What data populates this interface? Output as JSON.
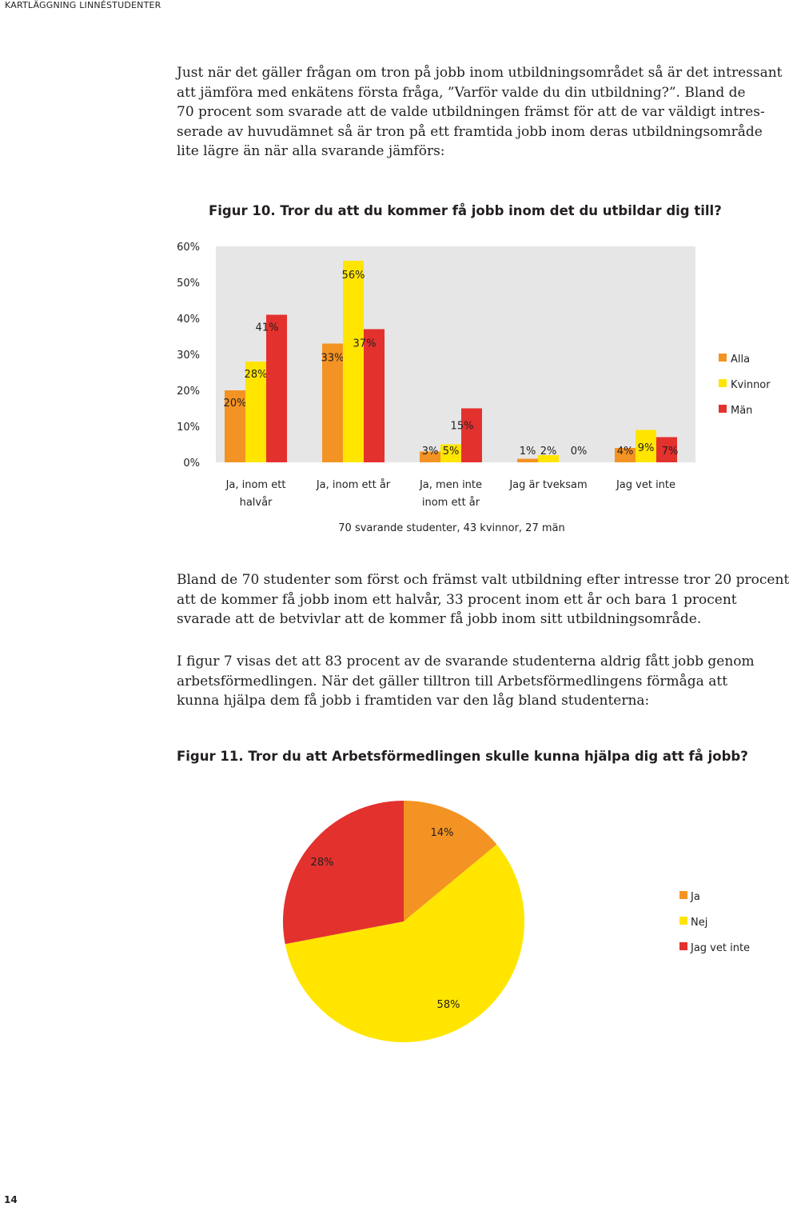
{
  "running_head": "KARTLÄGGNING LINNÉSTUDENTER",
  "paragraph_1": [
    "Just när det gäller frågan om tron på jobb inom utbildningsområdet så är det intressant",
    "att jämföra med enkätens första fråga, ”Varför valde du din utbildning?”. Bland de",
    "70 procent som svarade att de valde utbildningen främst för att de var väldigt intres-",
    "serade av huvudämnet så är tron på ett framtida jobb inom deras utbildningsområde",
    "lite lägre än när alla svarande jämförs:"
  ],
  "paragraph_2": [
    "Bland de 70 studenter som först och främst valt utbildning efter intresse tror 20 procent",
    "att de kommer få jobb inom ett halvår, 33 procent inom ett år och bara 1 procent",
    "svarade att de betvivlar att de kommer få jobb inom sitt utbildningsområde."
  ],
  "paragraph_3": [
    "I figur 7 visas det att 83 procent av de svarande studenterna aldrig fått jobb genom",
    "arbetsförmedlingen. När det gäller tilltron till Arbetsförmedlingens förmåga att",
    "kunna hjälpa dem få jobb i framtiden var den låg bland studenterna:"
  ],
  "page_number": "14",
  "colors": {
    "orange": "#f39323",
    "yellow": "#ffe500",
    "red": "#e3312d",
    "grid": "#e6e6e6"
  },
  "chart_data": [
    {
      "type": "bar",
      "title": "Figur 10. Tror du att du kommer få jobb inom det du utbildar dig till?",
      "categories": [
        [
          "Ja, inom ett",
          "halvår"
        ],
        [
          "Ja, inom ett år"
        ],
        [
          "Ja, men inte",
          "inom ett år"
        ],
        [
          "Jag är tveksam"
        ],
        [
          "Jag vet inte"
        ]
      ],
      "series": [
        {
          "name": "Alla",
          "color": "#f39323",
          "values": [
            20,
            33,
            3,
            1,
            4
          ]
        },
        {
          "name": "Kvinnor",
          "color": "#ffe500",
          "values": [
            28,
            56,
            5,
            2,
            9
          ]
        },
        {
          "name": "Män",
          "color": "#e3312d",
          "values": [
            41,
            37,
            15,
            0,
            7
          ]
        }
      ],
      "value_labels": [
        [
          "20%",
          "28%",
          "41%"
        ],
        [
          "33%",
          "56%",
          "37%"
        ],
        [
          "3%",
          "5%",
          "15%"
        ],
        [
          "1%",
          "2%",
          "0%"
        ],
        [
          "4%",
          "9%",
          "7%"
        ]
      ],
      "ylim": [
        0,
        60
      ],
      "y_ticks": [
        "0%",
        "10%",
        "20%",
        "30%",
        "40%",
        "50%",
        "60%"
      ],
      "note": "70  svarande studenter, 43 kvinnor, 27 män",
      "legend_position": "right",
      "grid": false
    },
    {
      "type": "pie",
      "title": "Figur 11. Tror du att Arbetsförmedlingen skulle kunna hjälpa dig att få jobb?",
      "slices": [
        {
          "label": "Ja",
          "value": 14,
          "value_label": "14%",
          "color": "#f39323"
        },
        {
          "label": "Nej",
          "value": 58,
          "value_label": "58%",
          "color": "#ffe500"
        },
        {
          "label": "Jag vet inte",
          "value": 28,
          "value_label": "28%",
          "color": "#e3312d"
        }
      ],
      "legend_position": "right"
    }
  ]
}
